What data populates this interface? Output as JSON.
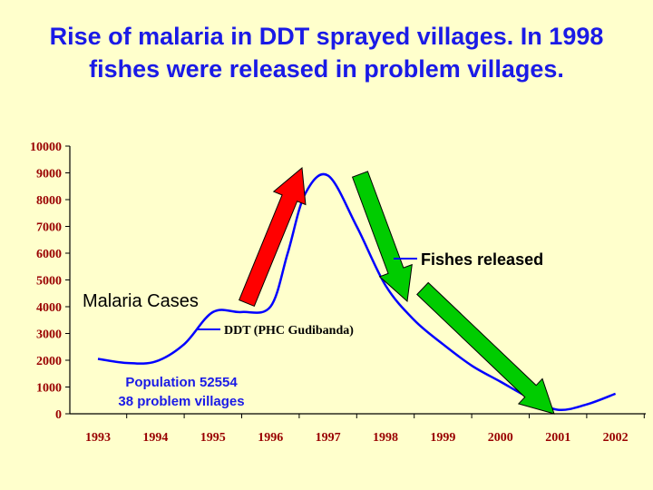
{
  "slide": {
    "title_line1": "Rise of malaria in DDT sprayed  villages. In 1998",
    "title_line2": "fishes were released in problem villages."
  },
  "colors": {
    "background": "#FFFFCC",
    "title": "#1A1AE6",
    "line": "#0000FF",
    "tick_label": "#990000",
    "axis": "#000000",
    "up_arrow": "#FF0000",
    "down_arrow": "#00CC00"
  },
  "chart_data": {
    "type": "line",
    "title": "",
    "xlabel": "",
    "ylabel": "",
    "ylim": [
      0,
      10000
    ],
    "yticks": [
      0,
      1000,
      2000,
      3000,
      4000,
      5000,
      6000,
      7000,
      8000,
      9000,
      10000
    ],
    "xticks": [
      "1993",
      "1994",
      "1995",
      "1996",
      "1997",
      "1998",
      "1999",
      "2000",
      "2001",
      "2002"
    ],
    "grid": false,
    "series": [
      {
        "name": "Malaria Cases",
        "x": [
          1993,
          1993.5,
          1994,
          1994.5,
          1995,
          1995.5,
          1996,
          1996.3,
          1996.6,
          1997,
          1997.5,
          1998,
          1998.5,
          1999,
          1999.5,
          2000,
          2000.5,
          2001,
          2001.5,
          2002
        ],
        "y": [
          2050,
          1900,
          1950,
          2600,
          3800,
          3800,
          4000,
          6000,
          8200,
          8900,
          7000,
          4800,
          3500,
          2600,
          1800,
          1200,
          600,
          150,
          350,
          750
        ]
      }
    ],
    "annotations": {
      "malaria_cases": "Malaria Cases",
      "ddt": "DDT (PHC Gudibanda)",
      "fishes": "Fishes released",
      "population": "Population 52554",
      "villages": "38 problem villages"
    }
  }
}
